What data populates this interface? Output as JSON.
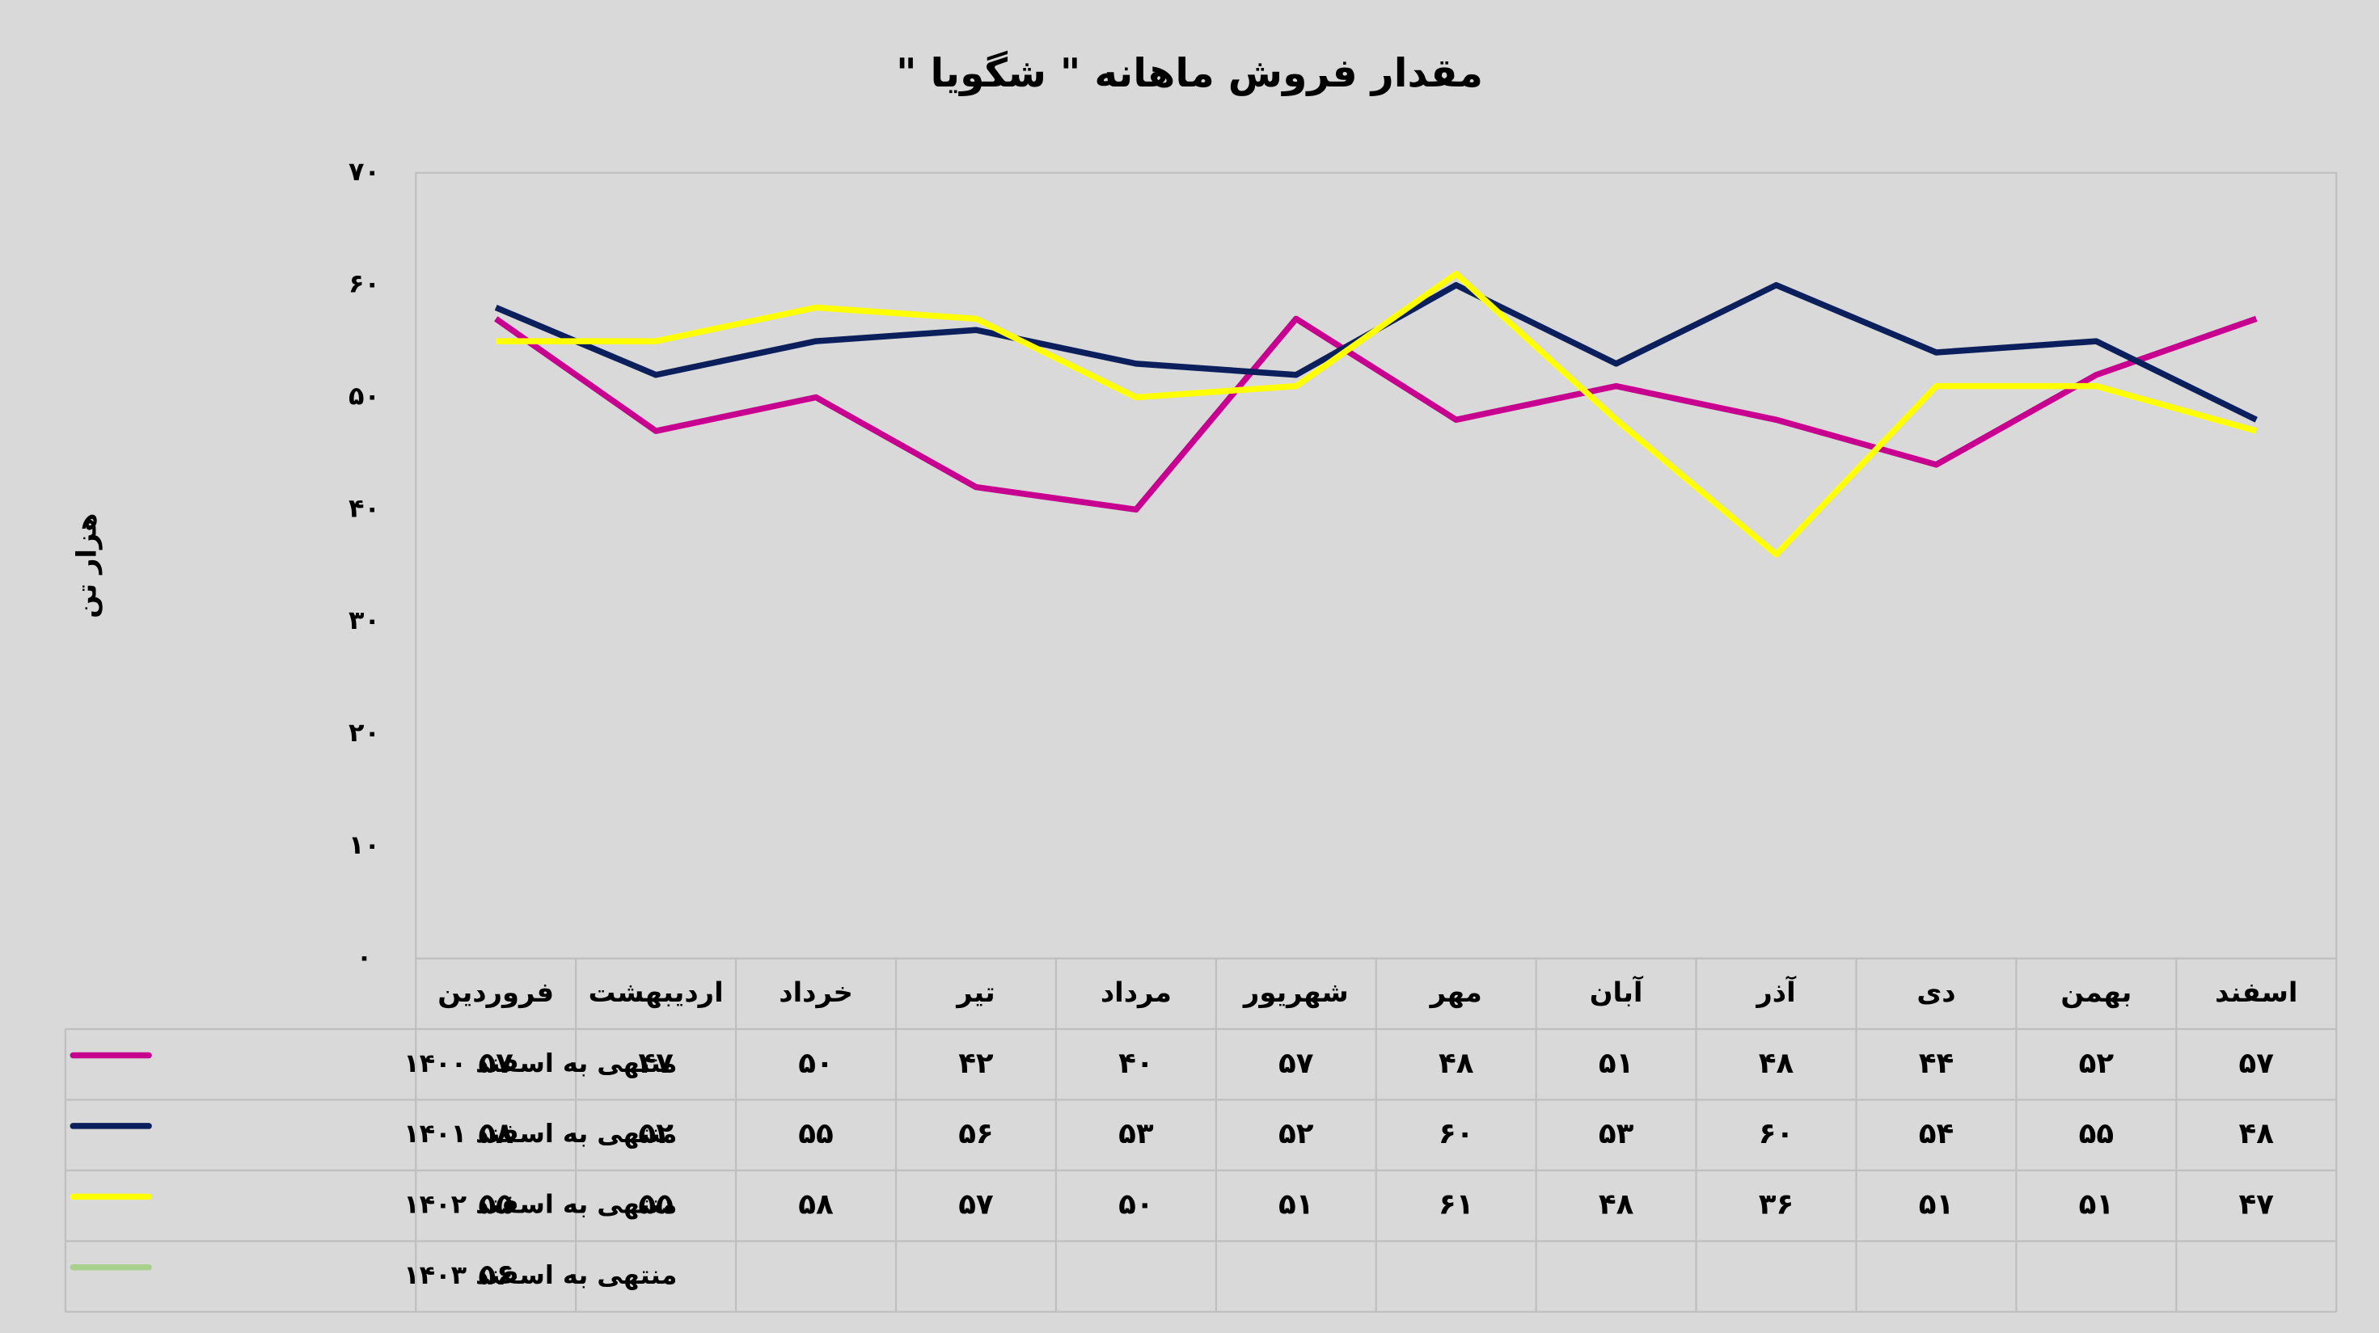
{
  "chart_data": {
    "type": "line",
    "title": "مقدار فروش ماهانه \" شگویا \"",
    "y_label": "هزار تن",
    "categories": [
      "فروردین",
      "اردیبهشت",
      "خرداد",
      "تیر",
      "مرداد",
      "شهریور",
      "مهر",
      "آبان",
      "آذر",
      "دی",
      "بهمن",
      "اسفند"
    ],
    "ylim": [
      0,
      70
    ],
    "yticks": [
      {
        "value": 0,
        "label": "۰"
      },
      {
        "value": 10,
        "label": "۱۰"
      },
      {
        "value": 20,
        "label": "۲۰"
      },
      {
        "value": 30,
        "label": "۳۰"
      },
      {
        "value": 40,
        "label": "۴۰"
      },
      {
        "value": 50,
        "label": "۵۰"
      },
      {
        "value": 60,
        "label": "۶۰"
      },
      {
        "value": 70,
        "label": "۷۰"
      }
    ],
    "grid": false,
    "series": [
      {
        "name": "منتهی به اسفند ۱۴۰۰",
        "color": "#c8008f",
        "values": [
          57,
          47,
          50,
          42,
          40,
          57,
          48,
          51,
          48,
          44,
          52,
          57
        ],
        "value_labels": [
          "۵۷",
          "۴۷",
          "۵۰",
          "۴۲",
          "۴۰",
          "۵۷",
          "۴۸",
          "۵۱",
          "۴۸",
          "۴۴",
          "۵۲",
          "۵۷"
        ]
      },
      {
        "name": "منتهی به اسفند ۱۴۰۱",
        "color": "#0b1f5c",
        "values": [
          58,
          52,
          55,
          56,
          53,
          52,
          60,
          53,
          60,
          54,
          55,
          48
        ],
        "value_labels": [
          "۵۸",
          "۵۲",
          "۵۵",
          "۵۶",
          "۵۳",
          "۵۲",
          "۶۰",
          "۵۳",
          "۶۰",
          "۵۴",
          "۵۵",
          "۴۸"
        ]
      },
      {
        "name": "منتهی به اسفند ۱۴۰۲",
        "color": "#ffff00",
        "values": [
          55,
          55,
          58,
          57,
          50,
          51,
          61,
          48,
          36,
          51,
          51,
          47
        ],
        "value_labels": [
          "۵۵",
          "۵۵",
          "۵۸",
          "۵۷",
          "۵۰",
          "۵۱",
          "۶۱",
          "۴۸",
          "۳۶",
          "۵۱",
          "۵۱",
          "۴۷"
        ]
      },
      {
        "name": "منتهی به اسفند ۱۴۰۳",
        "color": "#a9d18e",
        "values": [
          56,
          null,
          null,
          null,
          null,
          null,
          null,
          null,
          null,
          null,
          null,
          null
        ],
        "value_labels": [
          "۵۶",
          null,
          null,
          null,
          null,
          null,
          null,
          null,
          null,
          null,
          null,
          null
        ]
      }
    ]
  }
}
